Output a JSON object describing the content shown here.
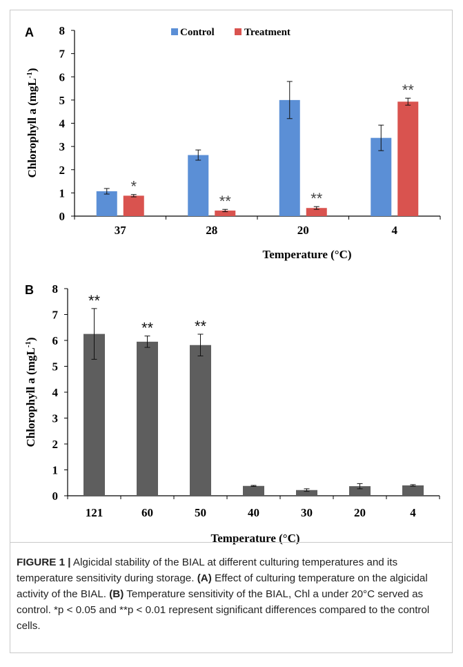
{
  "panels": [
    {
      "panel_label": "A"
    },
    {
      "panel_label": "B"
    }
  ],
  "chart_data": [
    {
      "type": "bar",
      "categories": [
        "37",
        "28",
        "20",
        "4"
      ],
      "series": [
        {
          "name": "Control",
          "color": "#5b8fd6",
          "values": [
            1.07,
            2.63,
            5.0,
            3.37
          ],
          "errors": [
            0.12,
            0.22,
            0.8,
            0.55
          ],
          "significance": [
            "",
            "",
            "",
            ""
          ]
        },
        {
          "name": "Treatment",
          "color": "#d9534f",
          "values": [
            0.88,
            0.24,
            0.35,
            4.93
          ],
          "errors": [
            0.05,
            0.05,
            0.06,
            0.15
          ],
          "significance": [
            "*",
            "**",
            "**",
            "**"
          ]
        }
      ],
      "ylabel": "Chlorophyll a (mgL-1)",
      "ylabel_main": "Chlorophyll a (mgL",
      "ylabel_sup": "-1",
      "ylabel_end": ")",
      "xlabel": "Temperature (°C)",
      "ylim": [
        0,
        8
      ],
      "yticks": [
        0,
        1,
        2,
        3,
        4,
        5,
        6,
        7,
        8
      ],
      "legend": "top-center"
    },
    {
      "type": "bar",
      "categories": [
        "121",
        "60",
        "50",
        "40",
        "30",
        "20",
        "4"
      ],
      "series": [
        {
          "color": "#5e5e5e",
          "values": [
            6.25,
            5.95,
            5.82,
            0.38,
            0.22,
            0.37,
            0.4
          ],
          "errors": [
            0.98,
            0.22,
            0.42,
            0.02,
            0.05,
            0.1,
            0.03
          ],
          "significance": [
            "**",
            "**",
            "**",
            "",
            "",
            "",
            ""
          ]
        }
      ],
      "ylabel": "Chlorophyll a (mgL-1)",
      "ylabel_main": "Chlorophyll a (mgL",
      "ylabel_sup": "-1",
      "ylabel_end": ")",
      "xlabel": "Temperature (°C)",
      "ylim": [
        0,
        8
      ],
      "yticks": [
        0,
        1,
        2,
        3,
        4,
        5,
        6,
        7,
        8
      ]
    }
  ],
  "caption": {
    "figure_label": "FIGURE 1 |",
    "intro": "Algicidal stability of the BIAL at different culturing temperatures and its temperature sensitivity during storage.",
    "marker_a": "(A)",
    "text_a": "Effect of culturing temperature on the algicidal activity of the BIAL.",
    "marker_b": "(B)",
    "text_b": "Temperature sensitivity of the BIAL, Chl a under 20°C served as control. *p < 0.05 and **p < 0.01 represent significant differences compared to the control cells."
  }
}
